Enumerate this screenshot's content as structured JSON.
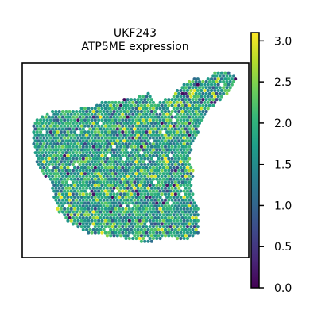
{
  "chart_data": {
    "type": "scatter",
    "title_lines": [
      "UKF243",
      "ATP5ME expression"
    ],
    "xlabel": "",
    "ylabel": "",
    "colormap": "viridis",
    "grid": false,
    "color_range": [
      0.0,
      3.1
    ],
    "colorbar": {
      "ticks": [
        0.0,
        0.5,
        1.0,
        1.5,
        2.0,
        2.5,
        3.0
      ],
      "tick_labels": [
        "0.0",
        "0.5",
        "1.0",
        "1.5",
        "2.0",
        "2.5",
        "3.0"
      ],
      "placement": "right"
    },
    "points_note_values": "expression per spot",
    "expression_mean": 1.75,
    "expression_spread": 0.45
  },
  "colors": {
    "frame": "#000000",
    "background": "#ffffff",
    "viridis": [
      "#440154",
      "#482878",
      "#3e4989",
      "#31688e",
      "#26828e",
      "#1f9e89",
      "#35b779",
      "#6ece58",
      "#b5de2b",
      "#fde725"
    ]
  }
}
